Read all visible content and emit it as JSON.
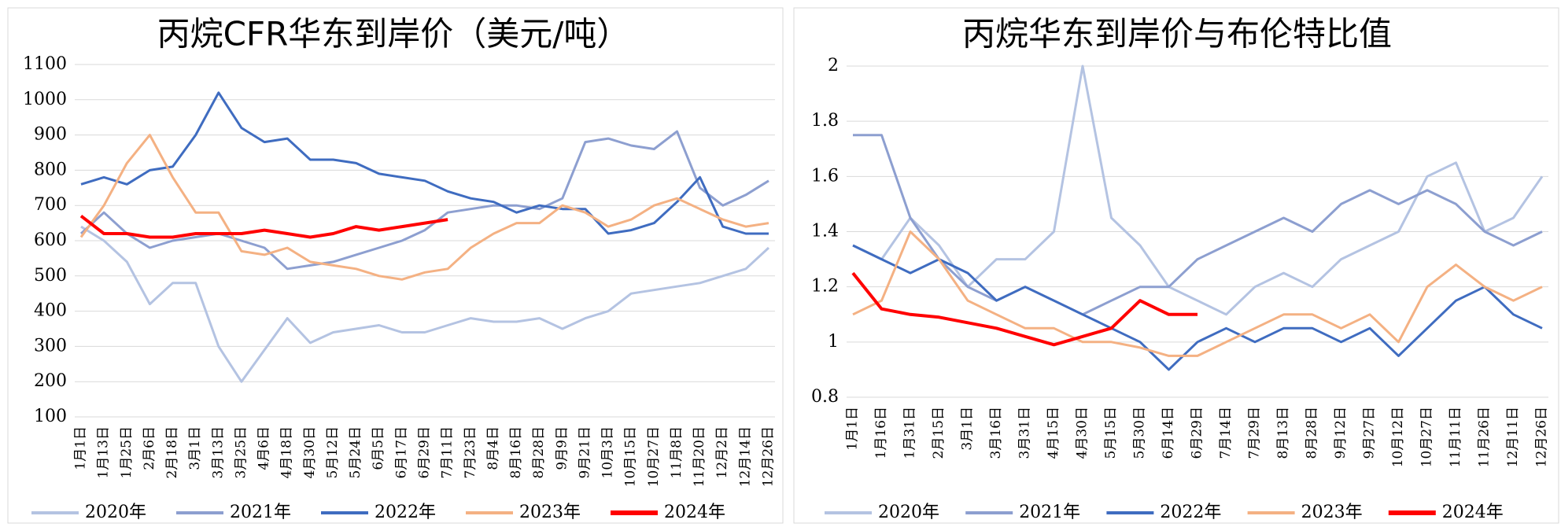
{
  "chart_data": [
    {
      "type": "line",
      "title": "丙烷CFR华东到岸价（美元/吨）",
      "categories": [
        "1月1日",
        "1月13日",
        "1月25日",
        "2月6日",
        "2月18日",
        "3月1日",
        "3月13日",
        "3月25日",
        "4月6日",
        "4月18日",
        "4月30日",
        "5月12日",
        "5月24日",
        "6月5日",
        "6月17日",
        "6月29日",
        "7月11日",
        "7月23日",
        "8月4日",
        "8月16日",
        "8月28日",
        "9月9日",
        "9月21日",
        "10月3日",
        "10月15日",
        "10月27日",
        "11月8日",
        "11月20日",
        "12月2日",
        "12月14日",
        "12月26日"
      ],
      "ylim": [
        100,
        1100
      ],
      "yticks": [
        100,
        200,
        300,
        400,
        500,
        600,
        700,
        800,
        900,
        1000,
        1100
      ],
      "grid": true,
      "series": [
        {
          "name": "2020年",
          "color": "#b4c3e2",
          "values": [
            640,
            600,
            540,
            420,
            480,
            480,
            300,
            200,
            290,
            380,
            310,
            340,
            350,
            360,
            340,
            340,
            360,
            380,
            370,
            370,
            380,
            350,
            380,
            400,
            450,
            460,
            470,
            480,
            500,
            520,
            580
          ]
        },
        {
          "name": "2021年",
          "color": "#8d9fd0",
          "values": [
            620,
            680,
            620,
            580,
            600,
            610,
            620,
            600,
            580,
            520,
            530,
            540,
            560,
            580,
            600,
            630,
            680,
            690,
            700,
            700,
            690,
            720,
            880,
            890,
            870,
            860,
            910,
            750,
            700,
            730,
            770
          ]
        },
        {
          "name": "2022年",
          "color": "#3f6cc0",
          "values": [
            760,
            780,
            760,
            800,
            810,
            900,
            1020,
            920,
            880,
            890,
            830,
            830,
            820,
            790,
            780,
            770,
            740,
            720,
            710,
            680,
            700,
            690,
            690,
            620,
            630,
            650,
            710,
            780,
            640,
            620,
            620
          ]
        },
        {
          "name": "2023年",
          "color": "#f4b183",
          "values": [
            610,
            700,
            820,
            900,
            780,
            680,
            680,
            570,
            560,
            580,
            540,
            530,
            520,
            500,
            490,
            510,
            520,
            580,
            620,
            650,
            650,
            700,
            680,
            640,
            660,
            700,
            720,
            690,
            660,
            640,
            650
          ]
        },
        {
          "name": "2024年",
          "color": "#ff0000",
          "values": [
            670,
            620,
            620,
            610,
            610,
            620,
            620,
            620,
            630,
            620,
            610,
            620,
            640,
            630,
            640,
            650,
            660,
            null,
            null,
            null,
            null,
            null,
            null,
            null,
            null,
            null,
            null,
            null,
            null,
            null,
            null
          ]
        }
      ]
    },
    {
      "type": "line",
      "title": "丙烷华东到岸价与布伦特比值",
      "categories": [
        "1月1日",
        "1月16日",
        "1月31日",
        "2月15日",
        "3月1日",
        "3月16日",
        "3月31日",
        "4月15日",
        "4月30日",
        "5月15日",
        "5月30日",
        "6月14日",
        "6月29日",
        "7月14日",
        "7月29日",
        "8月13日",
        "8月28日",
        "9月12日",
        "9月27日",
        "10月12日",
        "10月27日",
        "11月11日",
        "11月26日",
        "12月11日",
        "12月26日"
      ],
      "ylim": [
        0.8,
        2
      ],
      "yticks": [
        0.8,
        1,
        1.2,
        1.4,
        1.6,
        1.8,
        2
      ],
      "grid": true,
      "series": [
        {
          "name": "2020年",
          "color": "#b4c3e2",
          "values": [
            1.35,
            1.3,
            1.45,
            1.35,
            1.2,
            1.3,
            1.3,
            1.4,
            2.0,
            1.45,
            1.35,
            1.2,
            1.15,
            1.1,
            1.2,
            1.25,
            1.2,
            1.3,
            1.35,
            1.4,
            1.6,
            1.65,
            1.4,
            1.45,
            1.6
          ]
        },
        {
          "name": "2021年",
          "color": "#8d9fd0",
          "values": [
            1.75,
            1.75,
            1.45,
            1.3,
            1.2,
            1.15,
            1.2,
            1.15,
            1.1,
            1.15,
            1.2,
            1.2,
            1.3,
            1.35,
            1.4,
            1.45,
            1.4,
            1.5,
            1.55,
            1.5,
            1.55,
            1.5,
            1.4,
            1.35,
            1.4
          ]
        },
        {
          "name": "2022年",
          "color": "#3f6cc0",
          "values": [
            1.35,
            1.3,
            1.25,
            1.3,
            1.25,
            1.15,
            1.2,
            1.15,
            1.1,
            1.05,
            1.0,
            0.9,
            1.0,
            1.05,
            1.0,
            1.05,
            1.05,
            1.0,
            1.05,
            0.95,
            1.05,
            1.15,
            1.2,
            1.1,
            1.05
          ]
        },
        {
          "name": "2023年",
          "color": "#f4b183",
          "values": [
            1.1,
            1.15,
            1.4,
            1.3,
            1.15,
            1.1,
            1.05,
            1.05,
            1.0,
            1.0,
            0.98,
            0.95,
            0.95,
            1.0,
            1.05,
            1.1,
            1.1,
            1.05,
            1.1,
            1.0,
            1.2,
            1.28,
            1.2,
            1.15,
            1.2
          ]
        },
        {
          "name": "2024年",
          "color": "#ff0000",
          "values": [
            1.25,
            1.12,
            1.1,
            1.09,
            1.07,
            1.05,
            1.02,
            0.99,
            1.02,
            1.05,
            1.15,
            1.1,
            1.1,
            null,
            null,
            null,
            null,
            null,
            null,
            null,
            null,
            null,
            null,
            null,
            null
          ]
        }
      ]
    }
  ]
}
